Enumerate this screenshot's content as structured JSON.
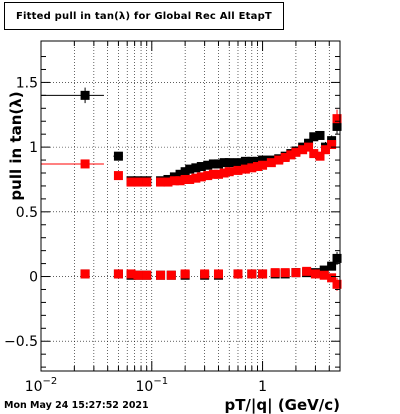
{
  "title": "Fitted pull in tan(λ) for Global Rec All EtapT",
  "timestamp": "Mon May 24 15:27:52 2021",
  "chart_data": {
    "type": "scatter",
    "xlabel": "pT/|q| (GeV/c)",
    "ylabel": "pull in tan(λ)",
    "xscale": "log",
    "xlim": [
      0.01,
      5.0
    ],
    "ylim": [
      -0.73,
      1.82
    ],
    "grid": true,
    "yticks": [
      {
        "v": -0.5,
        "label": "−0.5"
      },
      {
        "v": 0,
        "label": "0"
      },
      {
        "v": 0.5,
        "label": "0.5"
      },
      {
        "v": 1,
        "label": "1"
      },
      {
        "v": 1.5,
        "label": "1.5"
      }
    ],
    "xticks": [
      {
        "v": 0.01,
        "base": "10",
        "exp": "−2"
      },
      {
        "v": 0.1,
        "base": "10",
        "exp": "−1"
      },
      {
        "v": 1,
        "base": "1",
        "exp": ""
      }
    ],
    "series": [
      {
        "color": "#000000",
        "marker": "square",
        "points": [
          {
            "x": 0.025,
            "y": 1.4,
            "xlo": 0.01,
            "xhi": 0.037,
            "yerr": 0.06
          },
          {
            "x": 0.05,
            "y": 0.93,
            "xlo": 0.045,
            "xhi": 0.055,
            "yerr": 0.02
          },
          {
            "x": 0.065,
            "y": 0.74
          },
          {
            "x": 0.075,
            "y": 0.74
          },
          {
            "x": 0.09,
            "y": 0.74
          },
          {
            "x": 0.12,
            "y": 0.74
          },
          {
            "x": 0.14,
            "y": 0.75
          },
          {
            "x": 0.16,
            "y": 0.77
          },
          {
            "x": 0.18,
            "y": 0.79
          },
          {
            "x": 0.2,
            "y": 0.81
          },
          {
            "x": 0.22,
            "y": 0.83
          },
          {
            "x": 0.25,
            "y": 0.84
          },
          {
            "x": 0.28,
            "y": 0.85
          },
          {
            "x": 0.32,
            "y": 0.86
          },
          {
            "x": 0.36,
            "y": 0.87
          },
          {
            "x": 0.4,
            "y": 0.87
          },
          {
            "x": 0.45,
            "y": 0.88
          },
          {
            "x": 0.5,
            "y": 0.88
          },
          {
            "x": 0.6,
            "y": 0.88
          },
          {
            "x": 0.7,
            "y": 0.89
          },
          {
            "x": 0.8,
            "y": 0.89
          },
          {
            "x": 0.9,
            "y": 0.89
          },
          {
            "x": 1.0,
            "y": 0.9
          },
          {
            "x": 1.2,
            "y": 0.9
          },
          {
            "x": 1.4,
            "y": 0.91
          },
          {
            "x": 1.6,
            "y": 0.93
          },
          {
            "x": 1.8,
            "y": 0.95
          },
          {
            "x": 2.0,
            "y": 0.97
          },
          {
            "x": 2.3,
            "y": 1.0
          },
          {
            "x": 2.6,
            "y": 1.03
          },
          {
            "x": 2.9,
            "y": 1.08,
            "yerr": 0.03
          },
          {
            "x": 3.3,
            "y": 1.09,
            "yerr": 0.03
          },
          {
            "x": 3.7,
            "y": 1.0,
            "yerr": 0.04
          },
          {
            "x": 4.2,
            "y": 1.05,
            "yerr": 0.04
          },
          {
            "x": 4.7,
            "y": 1.16,
            "yerr": 0.06
          },
          {
            "x": 0.025,
            "y": 0.02
          },
          {
            "x": 0.05,
            "y": 0.02
          },
          {
            "x": 0.065,
            "y": 0.01
          },
          {
            "x": 0.075,
            "y": 0.01
          },
          {
            "x": 0.09,
            "y": 0.01
          },
          {
            "x": 0.12,
            "y": 0.01
          },
          {
            "x": 0.15,
            "y": 0.01
          },
          {
            "x": 0.2,
            "y": 0.01
          },
          {
            "x": 0.3,
            "y": 0.01
          },
          {
            "x": 0.4,
            "y": 0.01
          },
          {
            "x": 0.6,
            "y": 0.02
          },
          {
            "x": 0.8,
            "y": 0.02
          },
          {
            "x": 1.0,
            "y": 0.02
          },
          {
            "x": 1.3,
            "y": 0.02
          },
          {
            "x": 1.6,
            "y": 0.02
          },
          {
            "x": 2.0,
            "y": 0.03
          },
          {
            "x": 2.5,
            "y": 0.03
          },
          {
            "x": 3.0,
            "y": 0.03
          },
          {
            "x": 3.6,
            "y": 0.05
          },
          {
            "x": 4.2,
            "y": 0.08
          },
          {
            "x": 4.7,
            "y": 0.14,
            "yerr": 0.05
          }
        ]
      },
      {
        "color": "#ff0000",
        "marker": "square",
        "points": [
          {
            "x": 0.025,
            "y": 0.87,
            "xlo": 0.01,
            "xhi": 0.037
          },
          {
            "x": 0.05,
            "y": 0.78
          },
          {
            "x": 0.065,
            "y": 0.73
          },
          {
            "x": 0.075,
            "y": 0.73
          },
          {
            "x": 0.09,
            "y": 0.73
          },
          {
            "x": 0.12,
            "y": 0.73
          },
          {
            "x": 0.14,
            "y": 0.73
          },
          {
            "x": 0.16,
            "y": 0.74
          },
          {
            "x": 0.18,
            "y": 0.74
          },
          {
            "x": 0.2,
            "y": 0.75
          },
          {
            "x": 0.22,
            "y": 0.75
          },
          {
            "x": 0.25,
            "y": 0.76
          },
          {
            "x": 0.28,
            "y": 0.77
          },
          {
            "x": 0.32,
            "y": 0.78
          },
          {
            "x": 0.36,
            "y": 0.79
          },
          {
            "x": 0.4,
            "y": 0.79
          },
          {
            "x": 0.45,
            "y": 0.8
          },
          {
            "x": 0.5,
            "y": 0.81
          },
          {
            "x": 0.6,
            "y": 0.82
          },
          {
            "x": 0.7,
            "y": 0.83
          },
          {
            "x": 0.8,
            "y": 0.84
          },
          {
            "x": 0.9,
            "y": 0.85
          },
          {
            "x": 1.0,
            "y": 0.86
          },
          {
            "x": 1.2,
            "y": 0.88
          },
          {
            "x": 1.4,
            "y": 0.9
          },
          {
            "x": 1.6,
            "y": 0.92
          },
          {
            "x": 1.8,
            "y": 0.94
          },
          {
            "x": 2.0,
            "y": 0.96
          },
          {
            "x": 2.3,
            "y": 0.98
          },
          {
            "x": 2.6,
            "y": 1.0
          },
          {
            "x": 2.9,
            "y": 0.95
          },
          {
            "x": 3.3,
            "y": 0.93
          },
          {
            "x": 3.7,
            "y": 0.98
          },
          {
            "x": 4.2,
            "y": 1.02
          },
          {
            "x": 4.7,
            "y": 1.22,
            "yerr": 0.07
          },
          {
            "x": 0.025,
            "y": 0.02
          },
          {
            "x": 0.05,
            "y": 0.02
          },
          {
            "x": 0.065,
            "y": 0.02
          },
          {
            "x": 0.075,
            "y": 0.01
          },
          {
            "x": 0.09,
            "y": 0.01
          },
          {
            "x": 0.12,
            "y": 0.01
          },
          {
            "x": 0.15,
            "y": 0.01
          },
          {
            "x": 0.2,
            "y": 0.02
          },
          {
            "x": 0.3,
            "y": 0.02
          },
          {
            "x": 0.4,
            "y": 0.02
          },
          {
            "x": 0.6,
            "y": 0.02
          },
          {
            "x": 0.8,
            "y": 0.02
          },
          {
            "x": 1.0,
            "y": 0.02
          },
          {
            "x": 1.3,
            "y": 0.03
          },
          {
            "x": 1.6,
            "y": 0.03
          },
          {
            "x": 2.0,
            "y": 0.03
          },
          {
            "x": 2.5,
            "y": 0.04
          },
          {
            "x": 3.0,
            "y": 0.02
          },
          {
            "x": 3.6,
            "y": 0.01
          },
          {
            "x": 4.2,
            "y": -0.01
          },
          {
            "x": 4.7,
            "y": -0.06,
            "yerr": 0.05
          }
        ]
      }
    ]
  }
}
